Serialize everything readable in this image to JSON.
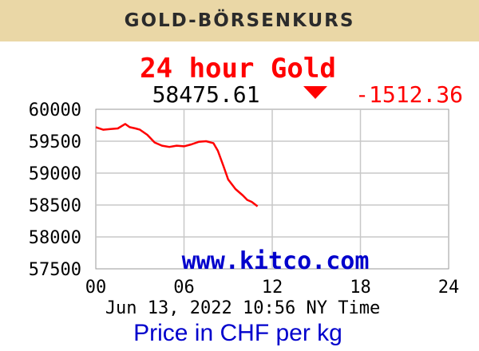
{
  "banner": {
    "title": "GOLD-BÖRSENKURS"
  },
  "chart_data": {
    "type": "line",
    "title": "24 hour Gold",
    "current_price": "58475.61",
    "change": "-1512.36",
    "change_direction": "down",
    "timestamp": "Jun 13, 2022 10:56 NY Time",
    "watermark": "www.kitco.com",
    "unit_label": "Price in CHF per kg",
    "xlim": [
      0,
      24
    ],
    "ylim": [
      57500,
      60000
    ],
    "x_ticks": [
      "00",
      "06",
      "12",
      "18",
      "24"
    ],
    "y_ticks": [
      "60000",
      "59500",
      "59000",
      "58500",
      "58000",
      "57500"
    ],
    "grid": true,
    "colors": {
      "title": "#ff0000",
      "change": "#ff0000",
      "line": "#ff0000",
      "watermark": "#0000cc",
      "unit_label": "#0000cc",
      "grid": "#c8c8c8"
    },
    "series": [
      {
        "x": [
          0,
          0.5,
          1,
          1.5,
          2,
          2.3,
          2.7,
          3,
          3.5,
          4,
          4.5,
          5,
          5.5,
          6,
          6.5,
          7,
          7.5,
          8,
          8.3,
          8.7,
          9,
          9.5,
          10,
          10.3,
          10.6,
          11
        ],
        "y": [
          59720,
          59680,
          59690,
          59700,
          59770,
          59720,
          59700,
          59680,
          59600,
          59480,
          59430,
          59410,
          59430,
          59420,
          59450,
          59490,
          59500,
          59470,
          59350,
          59100,
          58900,
          58750,
          58650,
          58580,
          58550,
          58480
        ]
      }
    ]
  }
}
